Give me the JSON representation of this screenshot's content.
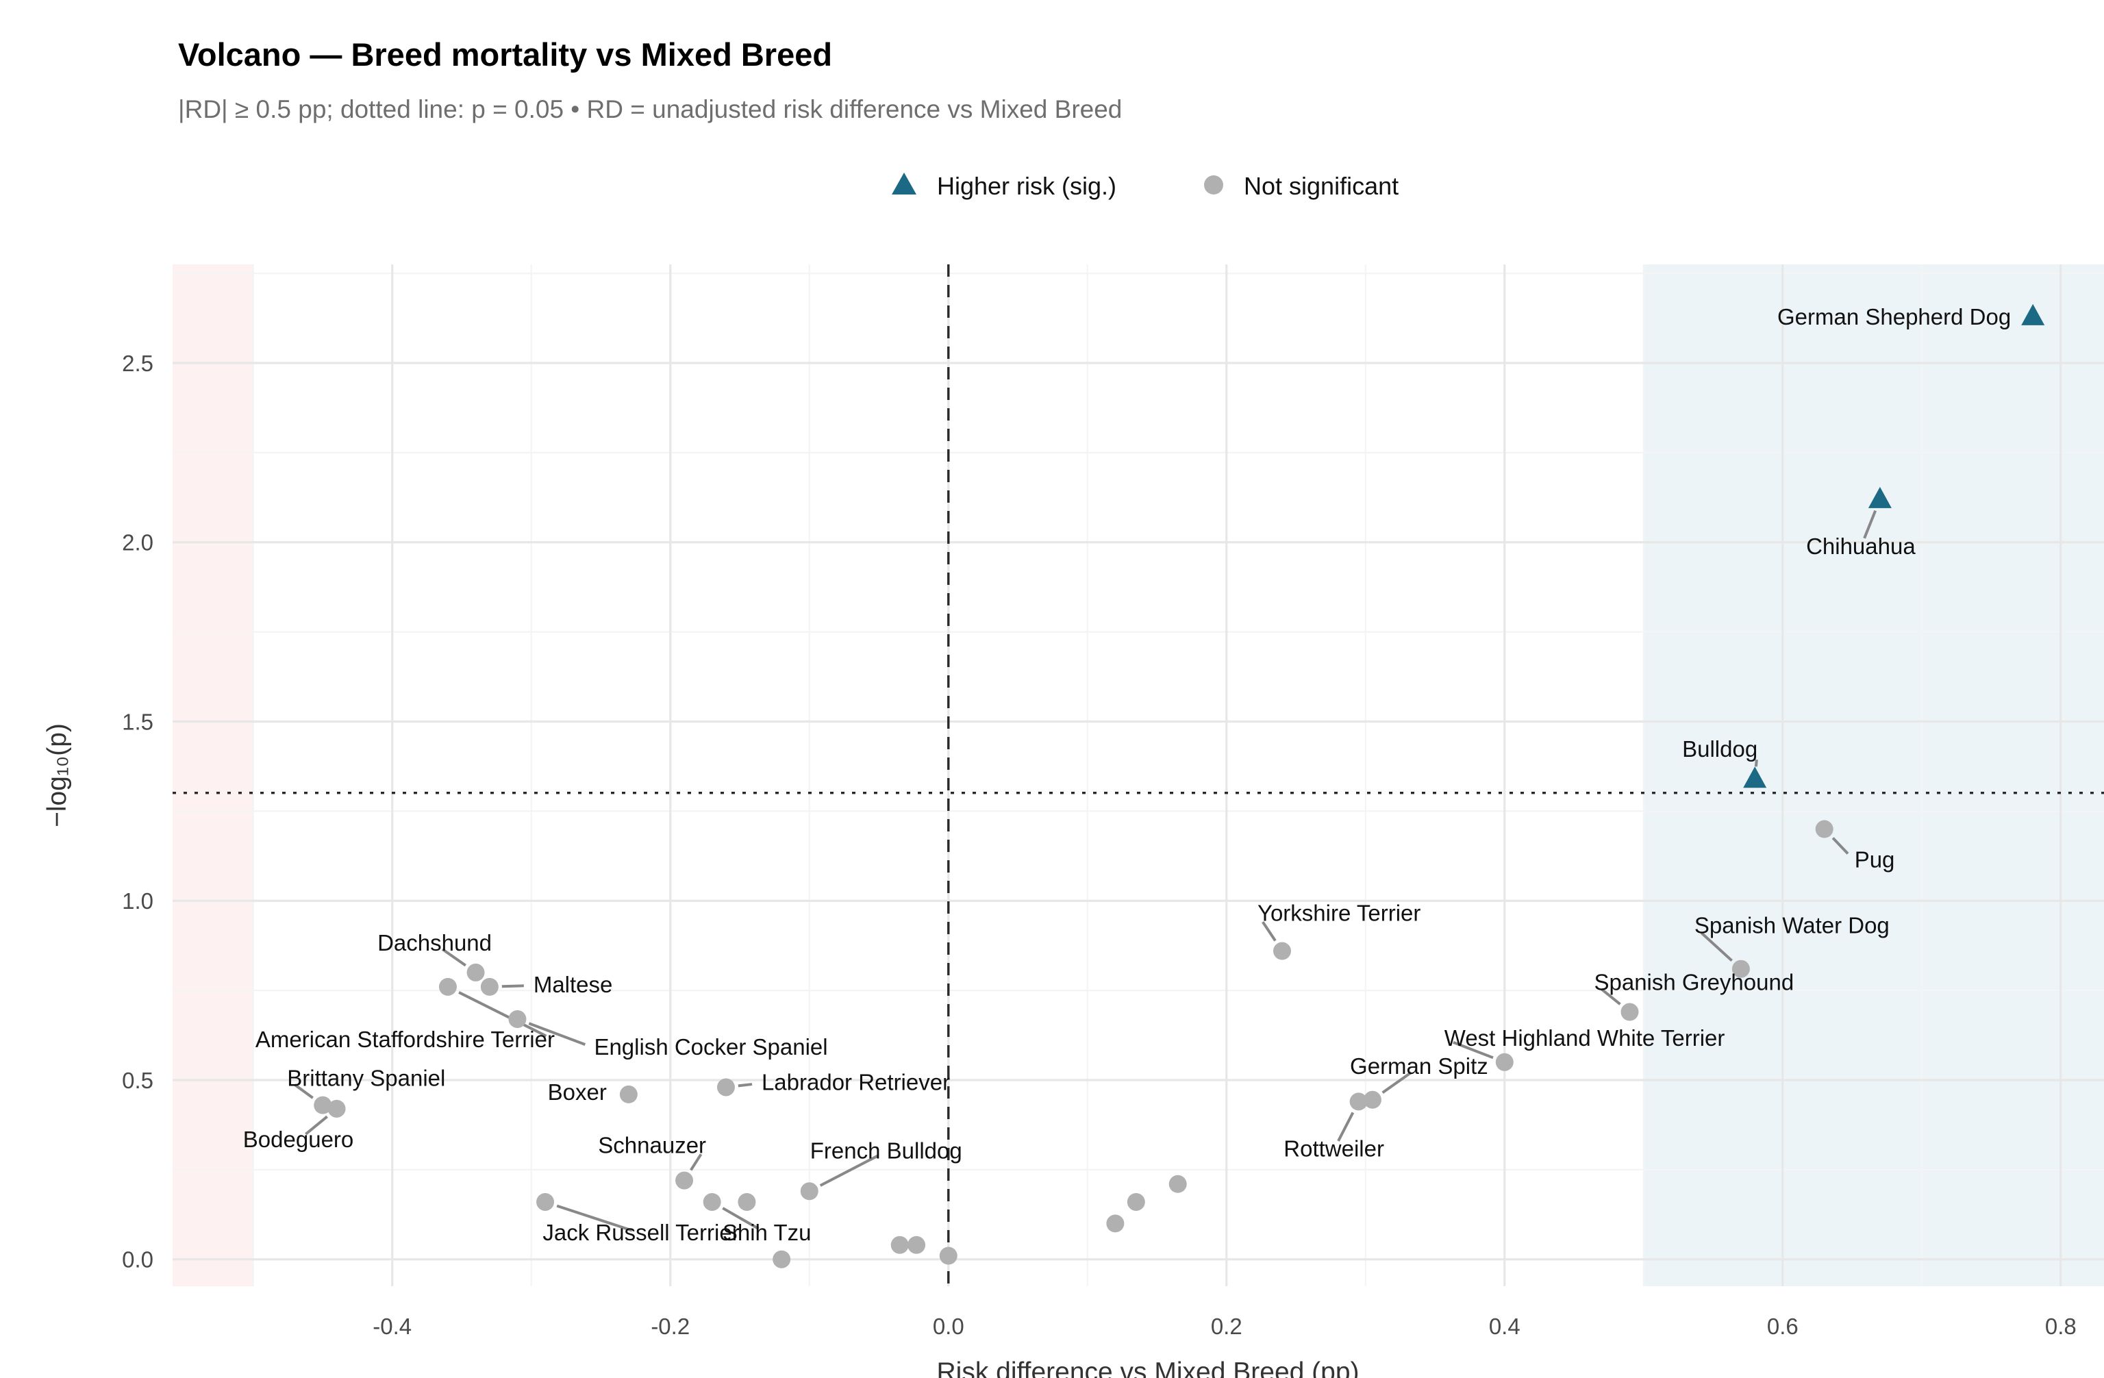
{
  "title": "Volcano — Breed mortality vs Mixed Breed",
  "subtitle": "|RD| ≥ 0.5 pp; dotted line: p = 0.05 • RD = unadjusted risk difference vs Mixed Breed",
  "legend": {
    "items": [
      {
        "label": "Higher risk (sig.)",
        "marker": "triangle"
      },
      {
        "label": "Not significant",
        "marker": "circle"
      }
    ]
  },
  "axes": {
    "x_label": "Risk difference vs Mixed Breed (pp)",
    "y_label": "−log₁₀(p)",
    "x_ticks": [
      {
        "v": -0.4,
        "label": "-0.4"
      },
      {
        "v": -0.2,
        "label": "-0.2"
      },
      {
        "v": 0.0,
        "label": "0.0"
      },
      {
        "v": 0.2,
        "label": "0.2"
      },
      {
        "v": 0.4,
        "label": "0.4"
      },
      {
        "v": 0.6,
        "label": "0.6"
      },
      {
        "v": 0.8,
        "label": "0.8"
      }
    ],
    "y_ticks": [
      {
        "v": 0.0,
        "label": "0.0"
      },
      {
        "v": 0.5,
        "label": "0.5"
      },
      {
        "v": 1.0,
        "label": "1.0"
      },
      {
        "v": 1.5,
        "label": "1.5"
      },
      {
        "v": 2.0,
        "label": "2.0"
      },
      {
        "v": 2.5,
        "label": "2.5"
      }
    ],
    "x_minor": [
      -0.5,
      -0.3,
      -0.1,
      0.1,
      0.3,
      0.5,
      0.7
    ],
    "y_minor": [
      0.25,
      0.75,
      1.25,
      1.75,
      2.25,
      2.75
    ],
    "x_range": [
      -0.558,
      0.84
    ],
    "y_range": [
      -0.075,
      2.775
    ]
  },
  "colors": {
    "sig": "#1b6985",
    "nonsig": "#b0b0b0",
    "band_left": "#fdf1f1",
    "band_right": "#ecf4f7",
    "grid_major": "#e7e7e7",
    "grid_minor": "#f4f4f4",
    "leader": "#888888",
    "label_text": "#111111",
    "threshold_line": "#2a2a2a"
  },
  "chart_data": {
    "type": "scatter",
    "title": "Volcano — Breed mortality vs Mixed Breed",
    "xlabel": "Risk difference vs Mixed Breed (pp)",
    "ylabel": "−log10(p)",
    "xlim": [
      -0.558,
      0.84
    ],
    "ylim": [
      -0.075,
      2.775
    ],
    "grid": true,
    "legend_position": "top-center",
    "thresholds": {
      "p_line_y": 1.301,
      "effect_band_pp": 0.5,
      "zero_line_x": 0
    },
    "bands": [
      {
        "from": -0.558,
        "to": -0.5,
        "color_key": "band_left"
      },
      {
        "from": 0.5,
        "to": 0.84,
        "color_key": "band_right"
      }
    ],
    "series": [
      {
        "name": "Higher risk (sig.)",
        "marker": "triangle",
        "points": [
          {
            "breed": "German Shepherd Dog",
            "x": 0.78,
            "y": 2.63,
            "label": {
              "dx": -16,
              "dy": 6,
              "anchor": "end"
            }
          },
          {
            "breed": "Chihuahua",
            "x": 0.67,
            "y": 2.12,
            "label": {
              "dx": -14,
              "dy": 40,
              "anchor": "middle"
            }
          },
          {
            "breed": "Bulldog",
            "x": 0.58,
            "y": 1.34,
            "label": {
              "dx": 2,
              "dy": -16,
              "anchor": "end"
            }
          }
        ]
      },
      {
        "name": "Not significant",
        "marker": "circle",
        "points": [
          {
            "breed": "Pug",
            "x": 0.63,
            "y": 1.2,
            "label": {
              "dx": 22,
              "dy": 28,
              "anchor": "start"
            }
          },
          {
            "breed": "Yorkshire Terrier",
            "x": 0.24,
            "y": 0.86,
            "label": {
              "dx": -18,
              "dy": -22,
              "anchor": "start"
            }
          },
          {
            "breed": "Spanish Water Dog",
            "x": 0.57,
            "y": 0.81,
            "label": {
              "dx": -34,
              "dy": -26,
              "anchor": "start"
            }
          },
          {
            "breed": "Spanish Greyhound",
            "x": 0.49,
            "y": 0.69,
            "label": {
              "dx": -26,
              "dy": -16,
              "anchor": "start"
            }
          },
          {
            "breed": "West Highland White Terrier",
            "x": 0.4,
            "y": 0.55,
            "label": {
              "dx": -44,
              "dy": -12,
              "anchor": "start"
            }
          },
          {
            "breed": "German Spitz",
            "x": 0.305,
            "y": 0.445,
            "label": {
              "dx": 34,
              "dy": -19,
              "anchor": "middle"
            }
          },
          {
            "breed": "Rottweiler",
            "x": 0.295,
            "y": 0.44,
            "label": {
              "dx": -18,
              "dy": 40,
              "anchor": "middle"
            }
          },
          {
            "breed": "Dachshund",
            "x": -0.34,
            "y": 0.8,
            "label": {
              "dx": -30,
              "dy": -16,
              "anchor": "middle"
            }
          },
          {
            "breed": "Maltese",
            "x": -0.33,
            "y": 0.76,
            "label": {
              "dx": 32,
              "dy": 4,
              "anchor": "start"
            }
          },
          {
            "breed": "American Staffordshire Terrier",
            "x": -0.36,
            "y": 0.76,
            "label": {
              "dx": 78,
              "dy": 44,
              "anchor": "end"
            }
          },
          {
            "breed": "English Cocker Spaniel",
            "x": -0.31,
            "y": 0.67,
            "label": {
              "dx": 56,
              "dy": 26,
              "anchor": "start"
            }
          },
          {
            "breed": "Boxer",
            "x": -0.23,
            "y": 0.46,
            "label": {
              "dx": -16,
              "dy": 4,
              "anchor": "end"
            }
          },
          {
            "breed": "Labrador Retriever",
            "x": -0.16,
            "y": 0.48,
            "label": {
              "dx": 26,
              "dy": 2,
              "anchor": "start"
            }
          },
          {
            "breed": "Brittany Spaniel",
            "x": -0.45,
            "y": 0.43,
            "label": {
              "dx": -26,
              "dy": -14,
              "anchor": "start"
            }
          },
          {
            "breed": "Bodeguero",
            "x": -0.44,
            "y": 0.42,
            "label": {
              "dx": -28,
              "dy": 28,
              "anchor": "middle"
            }
          },
          {
            "breed": "Schnauzer",
            "x": -0.19,
            "y": 0.22,
            "label": {
              "dx": 16,
              "dy": -20,
              "anchor": "end"
            }
          },
          {
            "breed": "Shih Tzu",
            "x": -0.17,
            "y": 0.16,
            "label": {
              "dx": 40,
              "dy": 28,
              "anchor": "middle"
            }
          },
          {
            "breed": "French Bulldog",
            "x": -0.1,
            "y": 0.19,
            "label": {
              "dx": 56,
              "dy": -24,
              "anchor": "middle"
            }
          },
          {
            "breed": "Jack Russell Terrier",
            "x": -0.29,
            "y": 0.16,
            "label": {
              "dx": 70,
              "dy": 28,
              "anchor": "middle"
            }
          },
          {
            "breed": "",
            "x": -0.145,
            "y": 0.16,
            "label": null
          },
          {
            "breed": "",
            "x": -0.12,
            "y": 0.0,
            "label": null
          },
          {
            "breed": "",
            "x": -0.035,
            "y": 0.04,
            "label": null
          },
          {
            "breed": "",
            "x": -0.023,
            "y": 0.04,
            "label": null
          },
          {
            "breed": "",
            "x": 0.0,
            "y": 0.01,
            "label": null
          },
          {
            "breed": "",
            "x": 0.12,
            "y": 0.1,
            "label": null
          },
          {
            "breed": "",
            "x": 0.135,
            "y": 0.16,
            "label": null
          },
          {
            "breed": "",
            "x": 0.165,
            "y": 0.21,
            "label": null
          }
        ]
      }
    ]
  }
}
